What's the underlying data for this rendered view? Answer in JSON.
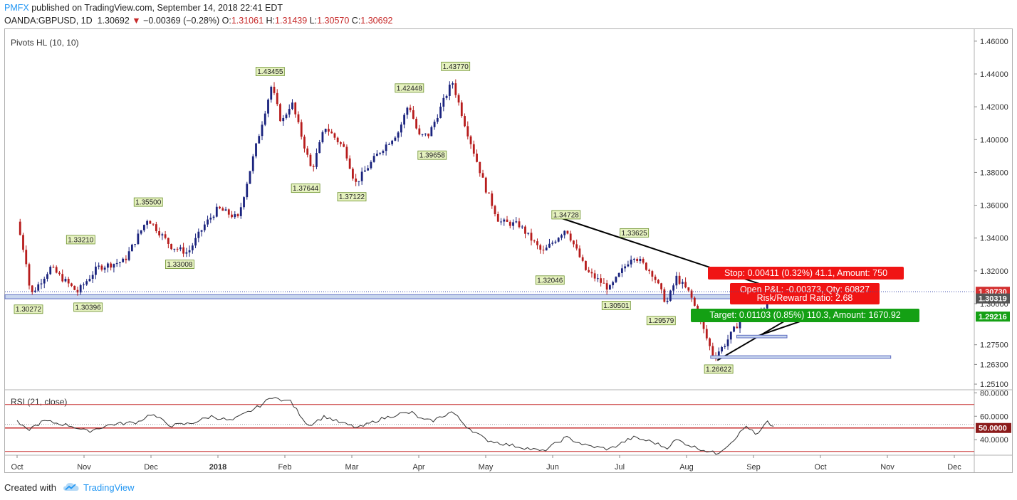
{
  "header": {
    "publisher": "PMFX",
    "published_text": "published on TradingView.com, September 14, 2018 22:41 EDT",
    "symbol": "OANDA:GBPUSD, 1D",
    "last": "1.30692",
    "arrow": "▼",
    "change": "−0.00369 (−0.28%)",
    "o_label": "O:",
    "o_value": "1.31061",
    "h_label": "H:",
    "h_value": "1.31439",
    "l_label": "L:",
    "l_value": "1.30570",
    "c_label": "C:",
    "c_value": "1.30692"
  },
  "footer": {
    "created_with": "Created with",
    "brand": "TradingView",
    "logo_icon": "tradingview-cloud-icon"
  },
  "colors": {
    "bull": "#1a237e",
    "bear": "#b71c1c",
    "stop": "#f01414",
    "target": "#14a014",
    "zone": "#c8d6ee",
    "rsi_line": "#333333",
    "rsi_band": "#c62828",
    "pivot_box": "#e6f2c0"
  },
  "chart_data": [
    {
      "type": "candlestick",
      "title": "Pivots HL (10, 10)",
      "ylim": [
        1.248,
        1.466
      ],
      "yticks": [
        "1.46000",
        "1.44000",
        "1.42000",
        "1.40000",
        "1.38000",
        "1.36000",
        "1.34000",
        "1.32000",
        "1.30000",
        "1.27500",
        "1.26300",
        "1.25100"
      ],
      "ytick_values": [
        1.46,
        1.44,
        1.42,
        1.4,
        1.38,
        1.36,
        1.34,
        1.32,
        1.3,
        1.275,
        1.263,
        1.251
      ],
      "xticks": [
        "Oct",
        "Nov",
        "Dec",
        "2018",
        "Feb",
        "Mar",
        "Apr",
        "May",
        "Jun",
        "Jul",
        "Aug",
        "Sep",
        "Oct",
        "Nov",
        "Dec"
      ],
      "xtick_bold": [
        false,
        false,
        false,
        true,
        false,
        false,
        false,
        false,
        false,
        false,
        false,
        false,
        false,
        false,
        false
      ],
      "x_month_index": [
        0,
        1,
        2,
        3,
        4,
        5,
        6,
        7,
        8,
        9,
        10,
        11,
        12,
        13,
        14
      ],
      "price_anchors": [
        {
          "t": 0.0,
          "p": 1.35
        },
        {
          "t": 0.14,
          "p": 1.325
        },
        {
          "t": 0.2,
          "p": 1.305
        },
        {
          "t": 0.5,
          "p": 1.322
        },
        {
          "t": 0.9,
          "p": 1.307
        },
        {
          "t": 1.2,
          "p": 1.322
        },
        {
          "t": 1.6,
          "p": 1.326
        },
        {
          "t": 1.95,
          "p": 1.352
        },
        {
          "t": 2.3,
          "p": 1.335
        },
        {
          "t": 2.55,
          "p": 1.331
        },
        {
          "t": 2.8,
          "p": 1.348
        },
        {
          "t": 3.0,
          "p": 1.358
        },
        {
          "t": 3.3,
          "p": 1.352
        },
        {
          "t": 3.5,
          "p": 1.385
        },
        {
          "t": 3.8,
          "p": 1.433
        },
        {
          "t": 3.95,
          "p": 1.41
        },
        {
          "t": 4.1,
          "p": 1.423
        },
        {
          "t": 4.4,
          "p": 1.381
        },
        {
          "t": 4.6,
          "p": 1.408
        },
        {
          "t": 4.9,
          "p": 1.394
        },
        {
          "t": 5.05,
          "p": 1.373
        },
        {
          "t": 5.4,
          "p": 1.392
        },
        {
          "t": 5.7,
          "p": 1.405
        },
        {
          "t": 5.85,
          "p": 1.422
        },
        {
          "t": 6.0,
          "p": 1.402
        },
        {
          "t": 6.15,
          "p": 1.403
        },
        {
          "t": 6.5,
          "p": 1.4355
        },
        {
          "t": 6.7,
          "p": 1.408
        },
        {
          "t": 7.0,
          "p": 1.37
        },
        {
          "t": 7.2,
          "p": 1.35
        },
        {
          "t": 7.5,
          "p": 1.348
        },
        {
          "t": 7.85,
          "p": 1.331
        },
        {
          "t": 8.2,
          "p": 1.346
        },
        {
          "t": 8.5,
          "p": 1.32
        },
        {
          "t": 8.85,
          "p": 1.309
        },
        {
          "t": 9.2,
          "p": 1.33
        },
        {
          "t": 9.5,
          "p": 1.318
        },
        {
          "t": 9.7,
          "p": 1.3
        },
        {
          "t": 9.85,
          "p": 1.316
        },
        {
          "t": 10.05,
          "p": 1.306
        },
        {
          "t": 10.2,
          "p": 1.29
        },
        {
          "t": 10.4,
          "p": 1.268
        },
        {
          "t": 10.55,
          "p": 1.274
        },
        {
          "t": 10.8,
          "p": 1.29
        },
        {
          "t": 11.1,
          "p": 1.296
        },
        {
          "t": 11.25,
          "p": 1.3035
        }
      ],
      "pivots": [
        {
          "label": "1.30272",
          "t": 0.17,
          "price": 1.30272,
          "pos": "low"
        },
        {
          "label": "1.33210",
          "t": 0.95,
          "price": 1.3321,
          "pos": "high"
        },
        {
          "label": "1.30396",
          "t": 1.06,
          "price": 1.30396,
          "pos": "low"
        },
        {
          "label": "1.35500",
          "t": 1.96,
          "price": 1.355,
          "pos": "high"
        },
        {
          "label": "1.33008",
          "t": 2.43,
          "price": 1.33008,
          "pos": "low"
        },
        {
          "label": "1.43455",
          "t": 3.78,
          "price": 1.43455,
          "pos": "high"
        },
        {
          "label": "1.37644",
          "t": 4.31,
          "price": 1.37644,
          "pos": "low"
        },
        {
          "label": "1.37122",
          "t": 5.0,
          "price": 1.37122,
          "pos": "low"
        },
        {
          "label": "1.42448",
          "t": 5.86,
          "price": 1.42448,
          "pos": "high"
        },
        {
          "label": "1.39658",
          "t": 6.2,
          "price": 1.39658,
          "pos": "low"
        },
        {
          "label": "1.43770",
          "t": 6.55,
          "price": 1.4377,
          "pos": "high"
        },
        {
          "label": "1.34728",
          "t": 8.2,
          "price": 1.34728,
          "pos": "high"
        },
        {
          "label": "1.32046",
          "t": 7.96,
          "price": 1.32046,
          "pos": "low"
        },
        {
          "label": "1.33625",
          "t": 9.22,
          "price": 1.33625,
          "pos": "high"
        },
        {
          "label": "1.30501",
          "t": 8.95,
          "price": 1.30501,
          "pos": "low"
        },
        {
          "label": "1.29579",
          "t": 9.62,
          "price": 1.29579,
          "pos": "low"
        },
        {
          "label": "1.26622",
          "t": 10.48,
          "price": 1.26622,
          "pos": "low"
        }
      ],
      "support_zone": {
        "t0": 0.0,
        "t1": 11.95,
        "p0": 1.303,
        "p1": 1.3055
      },
      "resistance_line": {
        "t0": 8.1,
        "p0": 1.3525,
        "t1": 11.1,
        "p1": 1.312
      },
      "support_line": {
        "t0": 10.46,
        "p0": 1.2655,
        "t1": 11.7,
        "p1": 1.295
      },
      "wedge_line": {
        "t0": 11.0,
        "p0": 1.2795,
        "t1": 11.9,
        "p1": 1.292
      },
      "entry_box": {
        "t0": 10.75,
        "t1": 11.5,
        "p0": 1.2792,
        "p1": 1.2808
      },
      "lower_box": {
        "t0": 10.36,
        "t1": 13.05,
        "p0": 1.2667,
        "p1": 1.2683
      },
      "position": {
        "stop_label": "Stop: 0.00411 (0.32%) 41.1, Amount: 750",
        "open_label": "Open P&L: -0.00373, Qty: 60827",
        "rr_label": "Risk/Reward Ratio: 2.68",
        "target_label": "Target: 0.01103 (0.85%) 110.3, Amount: 1670.92"
      },
      "price_tags": [
        {
          "label": "1.30730",
          "value": 1.3073,
          "style": "red"
        },
        {
          "label": "1.30319",
          "value": 1.30319,
          "style": "gray"
        },
        {
          "label": "1.29216",
          "value": 1.29216,
          "style": "green"
        }
      ]
    },
    {
      "type": "line",
      "title": "RSI (21, close)",
      "ylim": [
        28,
        82
      ],
      "yticks": [
        "80.0000",
        "60.0000",
        "40.0000"
      ],
      "ytick_values": [
        80,
        60,
        40
      ],
      "bands": [
        70,
        50,
        30
      ],
      "current_tag": "50.0000",
      "current_value": 50,
      "anchors": [
        {
          "t": 0.0,
          "v": 55
        },
        {
          "t": 0.15,
          "v": 48
        },
        {
          "t": 0.4,
          "v": 56
        },
        {
          "t": 0.8,
          "v": 52
        },
        {
          "t": 1.05,
          "v": 47
        },
        {
          "t": 1.4,
          "v": 53
        },
        {
          "t": 1.8,
          "v": 55
        },
        {
          "t": 2.0,
          "v": 62
        },
        {
          "t": 2.3,
          "v": 52
        },
        {
          "t": 2.6,
          "v": 54
        },
        {
          "t": 2.9,
          "v": 60
        },
        {
          "t": 3.2,
          "v": 56
        },
        {
          "t": 3.6,
          "v": 68
        },
        {
          "t": 3.85,
          "v": 78
        },
        {
          "t": 3.95,
          "v": 72
        },
        {
          "t": 4.05,
          "v": 75
        },
        {
          "t": 4.35,
          "v": 52
        },
        {
          "t": 4.6,
          "v": 60
        },
        {
          "t": 4.8,
          "v": 55
        },
        {
          "t": 5.1,
          "v": 50
        },
        {
          "t": 5.4,
          "v": 57
        },
        {
          "t": 5.7,
          "v": 62
        },
        {
          "t": 5.9,
          "v": 63
        },
        {
          "t": 6.05,
          "v": 57
        },
        {
          "t": 6.2,
          "v": 56
        },
        {
          "t": 6.5,
          "v": 64
        },
        {
          "t": 6.7,
          "v": 52
        },
        {
          "t": 7.0,
          "v": 40
        },
        {
          "t": 7.3,
          "v": 36
        },
        {
          "t": 7.6,
          "v": 33
        },
        {
          "t": 7.85,
          "v": 30
        },
        {
          "t": 8.2,
          "v": 42
        },
        {
          "t": 8.5,
          "v": 35
        },
        {
          "t": 8.85,
          "v": 32
        },
        {
          "t": 9.2,
          "v": 42
        },
        {
          "t": 9.5,
          "v": 38
        },
        {
          "t": 9.7,
          "v": 33
        },
        {
          "t": 9.85,
          "v": 40
        },
        {
          "t": 10.1,
          "v": 34
        },
        {
          "t": 10.45,
          "v": 28
        },
        {
          "t": 10.65,
          "v": 37
        },
        {
          "t": 10.9,
          "v": 52
        },
        {
          "t": 11.05,
          "v": 43
        },
        {
          "t": 11.2,
          "v": 55
        },
        {
          "t": 11.3,
          "v": 51
        }
      ]
    }
  ]
}
